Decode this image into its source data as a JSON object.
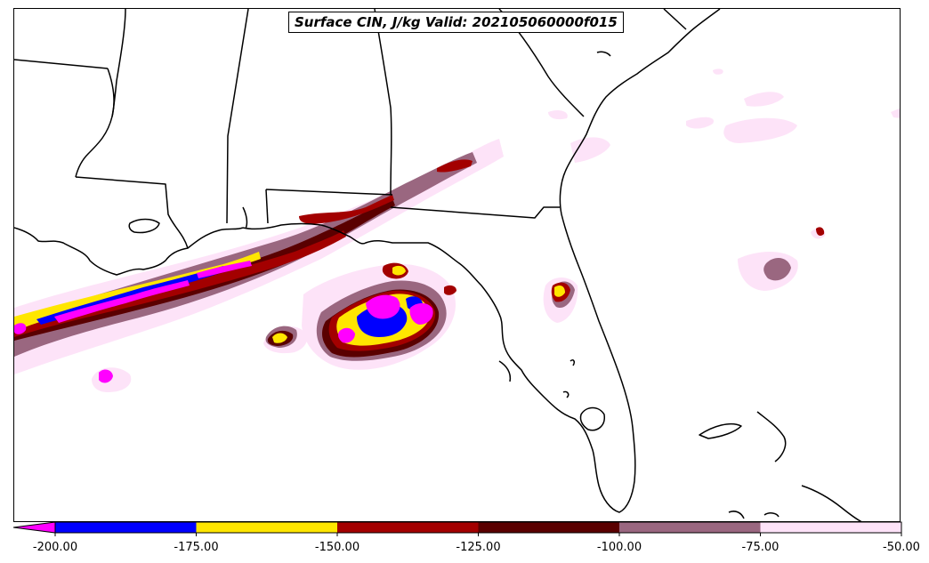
{
  "title": "Surface CIN, J/kg Valid: 202105060000f015",
  "colorbar": {
    "ticks": [
      "-200.00",
      "-175.00",
      "-150.00",
      "-125.00",
      "-100.00",
      "-75.00",
      "-50.00"
    ],
    "bins": [
      {
        "from": -200,
        "to": -175,
        "color": "#0000ff"
      },
      {
        "from": -175,
        "to": -150,
        "color": "#ffe600"
      },
      {
        "from": -150,
        "to": -125,
        "color": "#a30000"
      },
      {
        "from": -125,
        "to": -100,
        "color": "#5a0000"
      },
      {
        "from": -100,
        "to": -75,
        "color": "#9a6780"
      },
      {
        "from": -75,
        "to": -50,
        "color": "#fde3f8"
      }
    ],
    "extend_min_color": "#ff00ff"
  },
  "map": {
    "region": "Southeastern United States and Gulf of Mexico",
    "layers": [
      "coastlines",
      "state-borders",
      "cin-contours"
    ],
    "colors": {
      "border": "#000000",
      "very_light": "#fde3f8",
      "light_mauve": "#9a6780",
      "dark_red": "#5a0000",
      "red": "#a30000",
      "yellow": "#ffe600",
      "blue": "#0000ff",
      "magenta": "#ff00ff"
    }
  }
}
